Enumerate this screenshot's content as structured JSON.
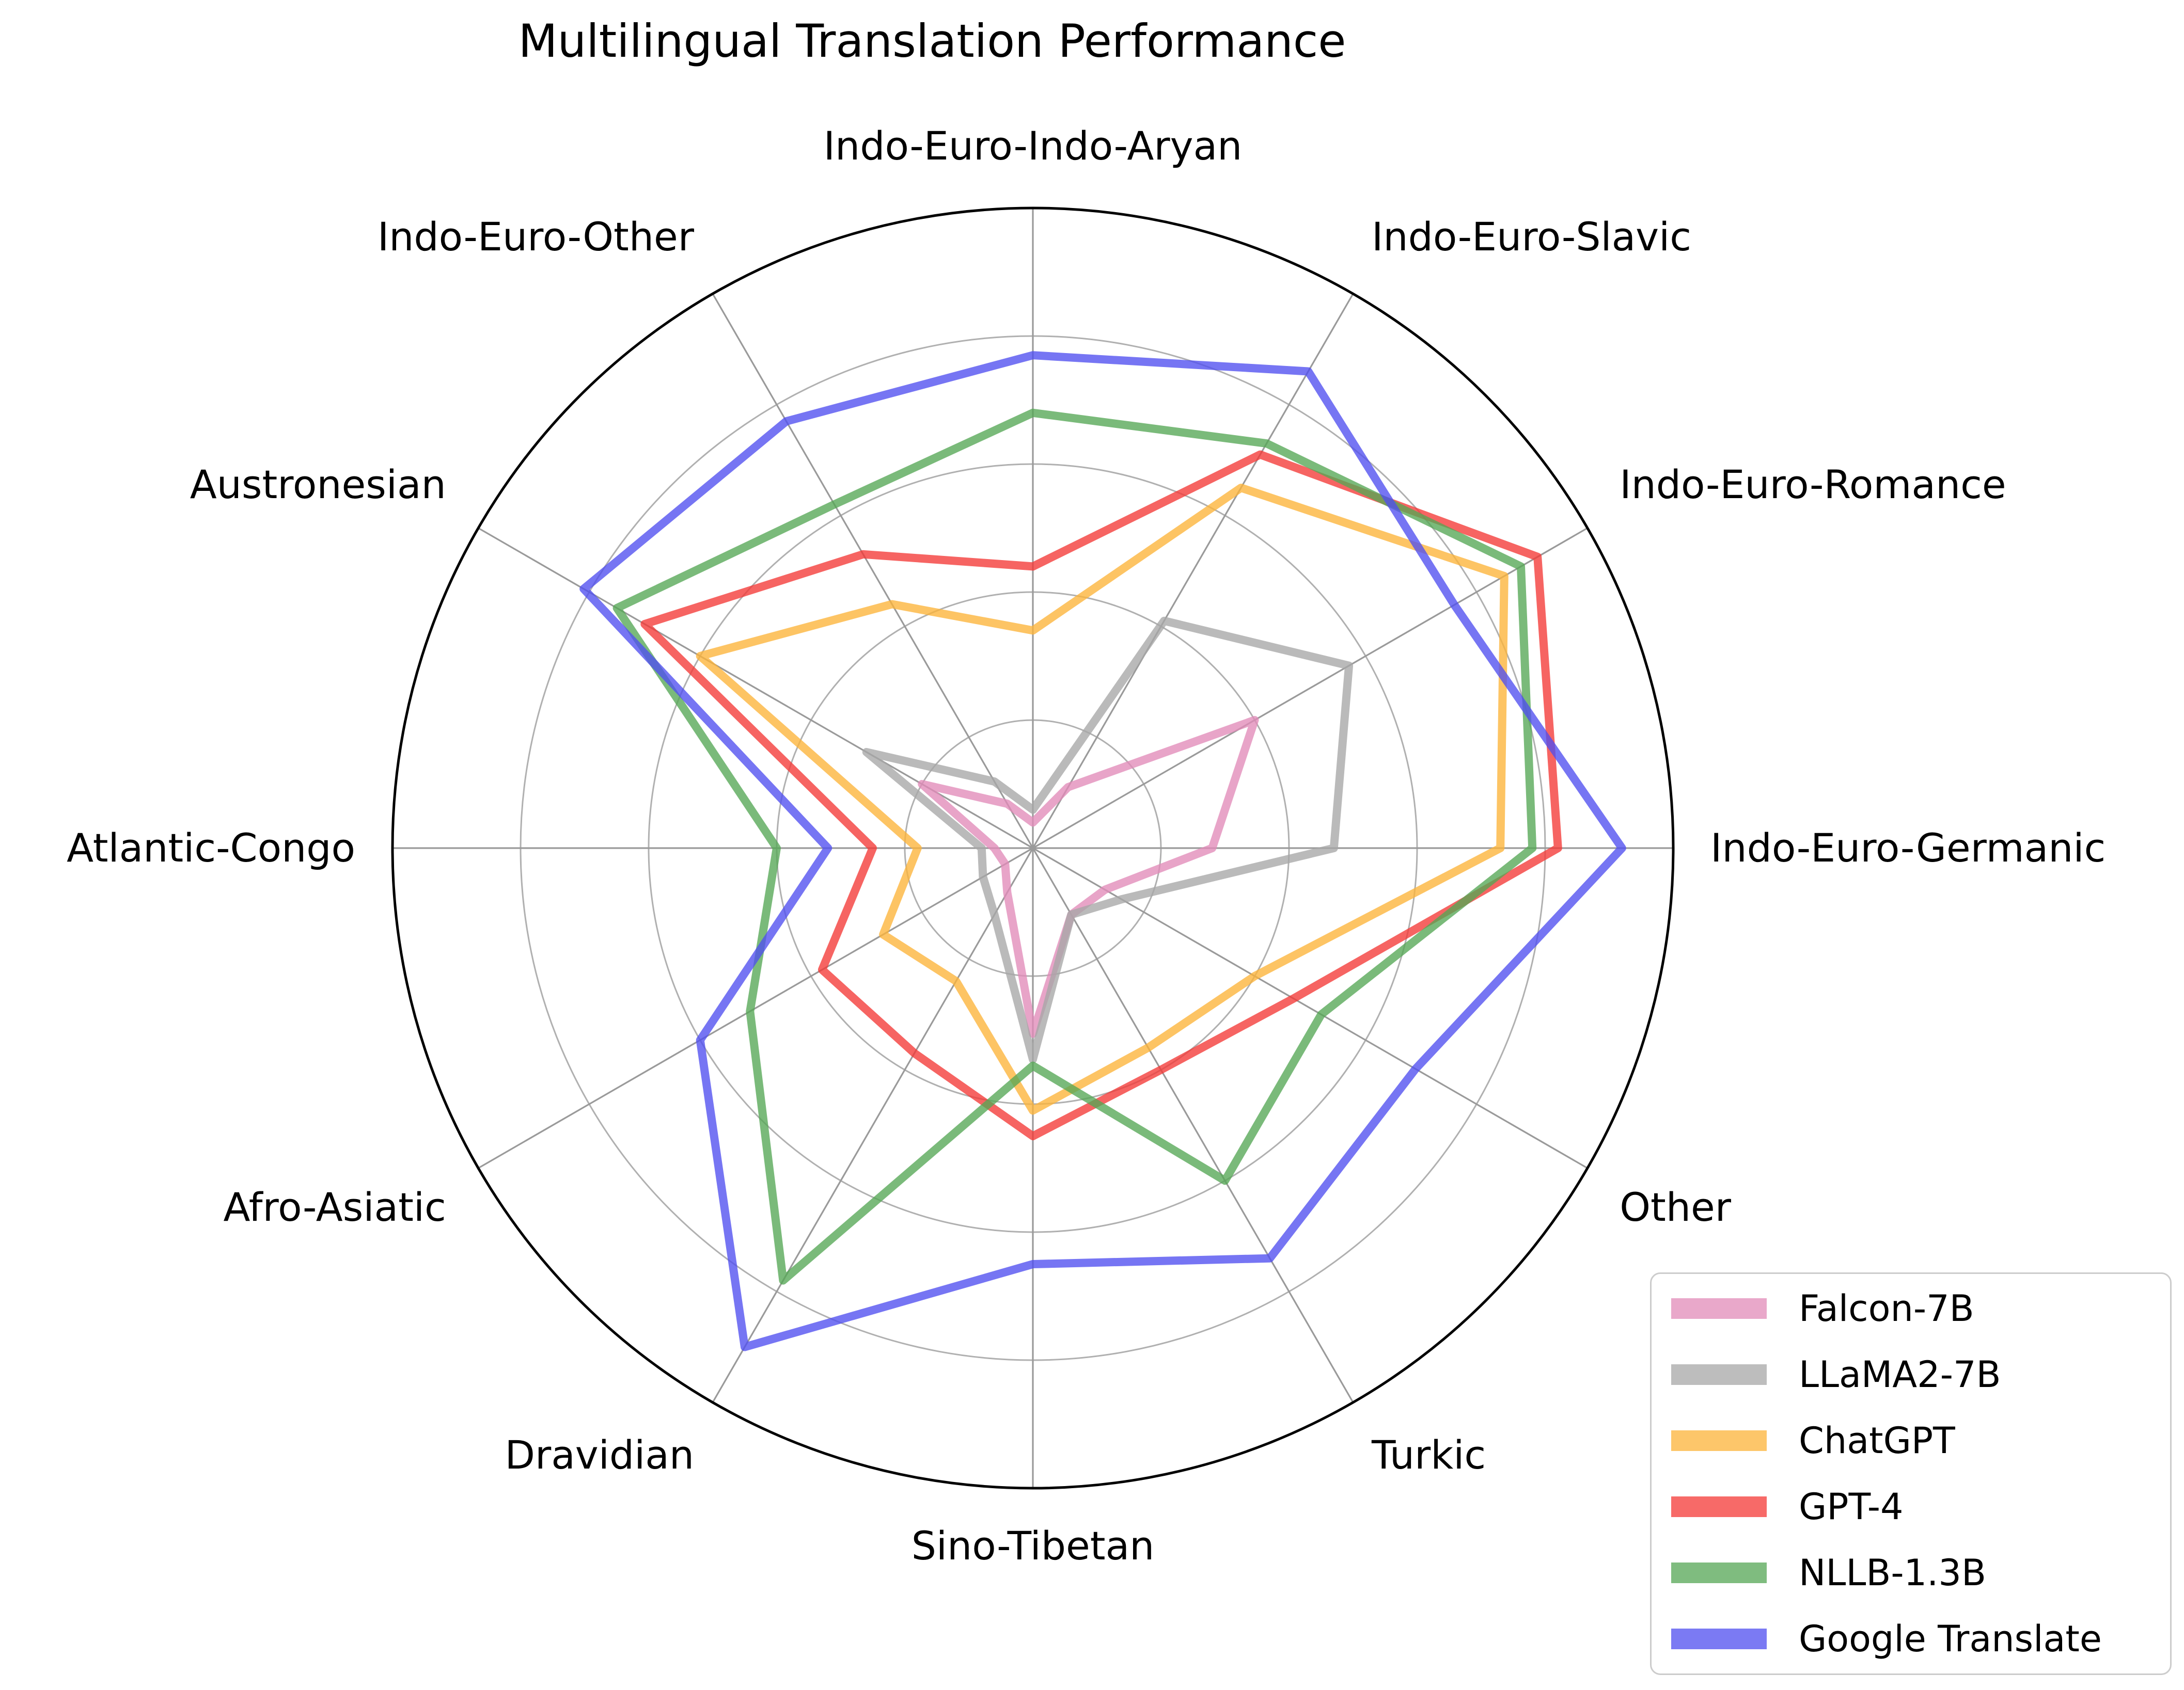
{
  "chart_data": {
    "type": "radar",
    "title": "Multilingual Translation Performance",
    "categories": [
      "Indo-Euro-Indo-Aryan",
      "Indo-Euro-Slavic",
      "Indo-Euro-Romance",
      "Indo-Euro-Germanic",
      "Other",
      "Turkic",
      "Sino-Tibetan",
      "Dravidian",
      "Afro-Asiatic",
      "Atlantic-Congo",
      "Austronesian",
      "Indo-Euro-Other"
    ],
    "grid": {
      "ring_fractions": [
        0.2,
        0.4,
        0.6,
        0.8
      ],
      "outer": 1.0,
      "ring_color": "#b0b0b0",
      "spoke_color": "#9a9a9a",
      "outer_color": "#000000"
    },
    "value_scale": {
      "min": 0,
      "max": 1.0,
      "note": "values estimated as fraction of outer radius; no radial tick labels are shown in the figure"
    },
    "legend_position": "lower-right",
    "series": [
      {
        "name": "Falcon-7B",
        "color": "#E9A8CA",
        "stroke": "#E28BB8",
        "values": [
          0.04,
          0.11,
          0.4,
          0.28,
          0.13,
          0.12,
          0.29,
          0.08,
          0.05,
          0.06,
          0.2,
          0.08
        ]
      },
      {
        "name": "LLaMA2-7B",
        "color": "#BDBDBD",
        "stroke": "#A7A7A7",
        "values": [
          0.06,
          0.41,
          0.57,
          0.47,
          0.16,
          0.12,
          0.33,
          0.12,
          0.09,
          0.08,
          0.3,
          0.12
        ]
      },
      {
        "name": "ChatGPT",
        "color": "#FDC66A",
        "stroke": "#FCB338",
        "values": [
          0.34,
          0.65,
          0.85,
          0.73,
          0.4,
          0.36,
          0.41,
          0.24,
          0.27,
          0.18,
          0.6,
          0.44
        ]
      },
      {
        "name": "GPT-4",
        "color": "#F76A68",
        "stroke": "#F43836",
        "values": [
          0.44,
          0.71,
          0.91,
          0.82,
          0.47,
          0.4,
          0.45,
          0.37,
          0.38,
          0.25,
          0.7,
          0.53
        ]
      },
      {
        "name": "NLLB-1.3B",
        "color": "#7FBC7F",
        "stroke": "#54A654",
        "values": [
          0.68,
          0.73,
          0.88,
          0.78,
          0.52,
          0.6,
          0.34,
          0.78,
          0.51,
          0.4,
          0.75,
          0.62
        ]
      },
      {
        "name": "Google Translate",
        "color": "#7B7AF3",
        "stroke": "#4F4EEF",
        "values": [
          0.77,
          0.86,
          0.76,
          0.92,
          0.69,
          0.74,
          0.65,
          0.9,
          0.6,
          0.32,
          0.81,
          0.77
        ]
      }
    ]
  }
}
